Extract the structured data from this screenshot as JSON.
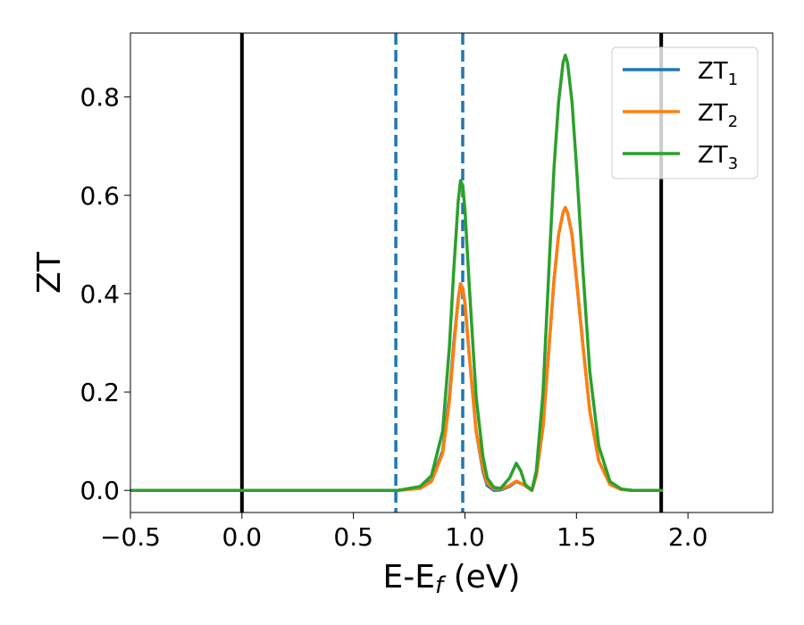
{
  "chart_data": {
    "type": "line",
    "xlabel": "E-E",
    "xlabel_sub": "f",
    "xlabel_unit": " (eV)",
    "ylabel": "ZT",
    "xlim": [
      -0.5,
      2.38
    ],
    "ylim": [
      -0.045,
      0.93
    ],
    "xticks": [
      -0.5,
      0.0,
      0.5,
      1.0,
      1.5,
      2.0
    ],
    "xtick_labels": [
      "−0.5",
      "0.0",
      "0.5",
      "1.0",
      "1.5",
      "2.0"
    ],
    "yticks": [
      0.0,
      0.2,
      0.4,
      0.6,
      0.8
    ],
    "ytick_labels": [
      "0.0",
      "0.2",
      "0.4",
      "0.6",
      "0.8"
    ],
    "grid": false,
    "legend_position": "top-right",
    "vlines": [
      {
        "x": 0.0,
        "style": "solid",
        "color": "#000000"
      },
      {
        "x": 1.88,
        "style": "solid",
        "color": "#000000"
      },
      {
        "x": 0.69,
        "style": "dashed",
        "color": "#1f77b4"
      },
      {
        "x": 0.99,
        "style": "dashed",
        "color": "#1f77b4"
      }
    ],
    "series": [
      {
        "name": "ZT",
        "sub": "1",
        "color": "#1f77b4",
        "x": [
          -0.5,
          0.5,
          0.7,
          0.8,
          0.85,
          0.9,
          0.93,
          0.95,
          0.97,
          0.98,
          0.99,
          1.0,
          1.02,
          1.05,
          1.08,
          1.1,
          1.13,
          1.16,
          1.2,
          1.23,
          1.26,
          1.3,
          1.32,
          1.35,
          1.38,
          1.4,
          1.42,
          1.44,
          1.45,
          1.46,
          1.48,
          1.5,
          1.53,
          1.56,
          1.6,
          1.65,
          1.7,
          1.75,
          1.88
        ],
        "y": [
          0,
          0,
          0,
          0.005,
          0.02,
          0.08,
          0.19,
          0.3,
          0.39,
          0.42,
          0.41,
          0.38,
          0.27,
          0.12,
          0.04,
          0.01,
          0.0,
          0.001,
          0.008,
          0.018,
          0.012,
          0.0,
          0.03,
          0.13,
          0.31,
          0.43,
          0.52,
          0.565,
          0.575,
          0.565,
          0.52,
          0.43,
          0.29,
          0.16,
          0.06,
          0.012,
          0.002,
          0,
          0
        ]
      },
      {
        "name": "ZT",
        "sub": "2",
        "color": "#ff7f0e",
        "x": [
          -0.5,
          0.5,
          0.7,
          0.8,
          0.85,
          0.9,
          0.93,
          0.95,
          0.97,
          0.98,
          0.99,
          1.0,
          1.02,
          1.05,
          1.08,
          1.1,
          1.13,
          1.16,
          1.2,
          1.23,
          1.26,
          1.3,
          1.32,
          1.35,
          1.38,
          1.4,
          1.42,
          1.44,
          1.45,
          1.46,
          1.48,
          1.5,
          1.53,
          1.56,
          1.6,
          1.65,
          1.7,
          1.75,
          1.88
        ],
        "y": [
          0,
          0,
          0,
          0.004,
          0.018,
          0.075,
          0.18,
          0.29,
          0.39,
          0.42,
          0.41,
          0.38,
          0.27,
          0.12,
          0.045,
          0.015,
          0.003,
          0.003,
          0.01,
          0.019,
          0.012,
          0.0,
          0.03,
          0.13,
          0.31,
          0.43,
          0.52,
          0.565,
          0.575,
          0.565,
          0.52,
          0.43,
          0.29,
          0.16,
          0.06,
          0.012,
          0.002,
          0,
          0
        ]
      },
      {
        "name": "ZT",
        "sub": "3",
        "color": "#2ca02c",
        "x": [
          -0.5,
          0.5,
          0.7,
          0.8,
          0.85,
          0.9,
          0.93,
          0.95,
          0.97,
          0.98,
          0.99,
          1.0,
          1.02,
          1.05,
          1.08,
          1.1,
          1.13,
          1.16,
          1.2,
          1.23,
          1.25,
          1.27,
          1.3,
          1.32,
          1.35,
          1.38,
          1.4,
          1.42,
          1.44,
          1.45,
          1.46,
          1.48,
          1.5,
          1.53,
          1.56,
          1.6,
          1.65,
          1.7,
          1.75,
          1.88
        ],
        "y": [
          0,
          0,
          0,
          0.008,
          0.03,
          0.12,
          0.29,
          0.45,
          0.59,
          0.63,
          0.62,
          0.57,
          0.41,
          0.19,
          0.07,
          0.025,
          0.006,
          0.004,
          0.025,
          0.055,
          0.04,
          0.012,
          0.0,
          0.04,
          0.2,
          0.48,
          0.66,
          0.79,
          0.87,
          0.885,
          0.87,
          0.79,
          0.66,
          0.44,
          0.24,
          0.09,
          0.018,
          0.003,
          0,
          0
        ]
      }
    ]
  }
}
